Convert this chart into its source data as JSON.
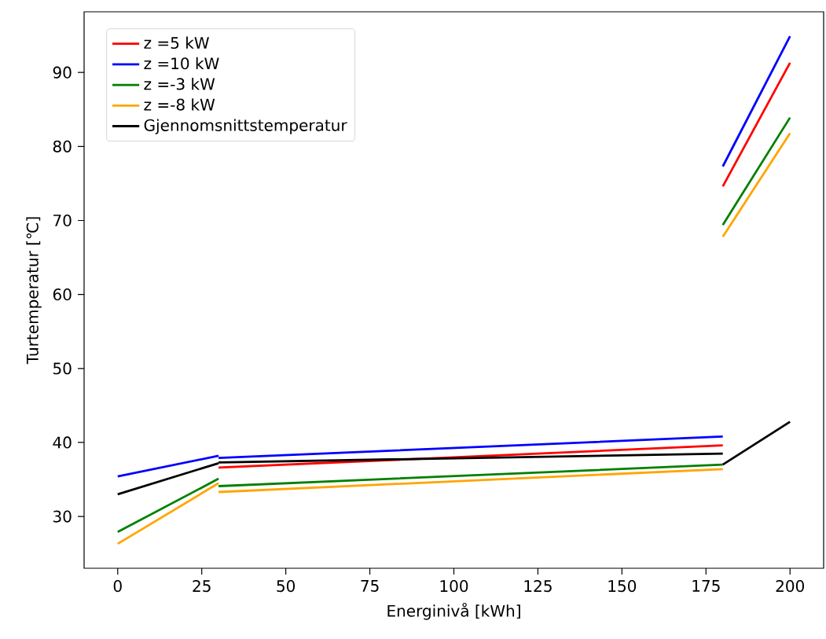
{
  "chart_data": {
    "type": "line",
    "xlabel": "Energinivå [kWh]",
    "ylabel": "Turtemperatur [℃]",
    "x": [
      0,
      30,
      30,
      180,
      180,
      200
    ],
    "series": [
      {
        "name": "z =5 kW",
        "color": "#ff0000",
        "values": [
          null,
          null,
          36.6,
          39.6,
          74.6,
          91.3
        ]
      },
      {
        "name": "z =10 kW",
        "color": "#0000ff",
        "values": [
          35.4,
          38.2,
          37.9,
          40.8,
          77.3,
          94.9
        ]
      },
      {
        "name": "z =-3 kW",
        "color": "#008000",
        "values": [
          27.9,
          35.1,
          34.1,
          37.0,
          69.4,
          83.9
        ]
      },
      {
        "name": "z =-8 kW",
        "color": "#ffa500",
        "values": [
          26.3,
          34.5,
          33.3,
          36.4,
          67.8,
          81.8
        ]
      },
      {
        "name": "Gjennomsnittstemperatur",
        "color": "#000000",
        "values": [
          33.0,
          37.2,
          37.3,
          38.5,
          37.0,
          42.8
        ]
      }
    ],
    "xlim": [
      -10,
      210
    ],
    "ylim": [
      23,
      98.2
    ],
    "xticks": [
      0,
      25,
      50,
      75,
      100,
      125,
      150,
      175,
      200
    ],
    "yticks": [
      30,
      40,
      50,
      60,
      70,
      80,
      90
    ],
    "legend": "top left",
    "grid": false,
    "marker": "none",
    "line_style": "solid"
  }
}
